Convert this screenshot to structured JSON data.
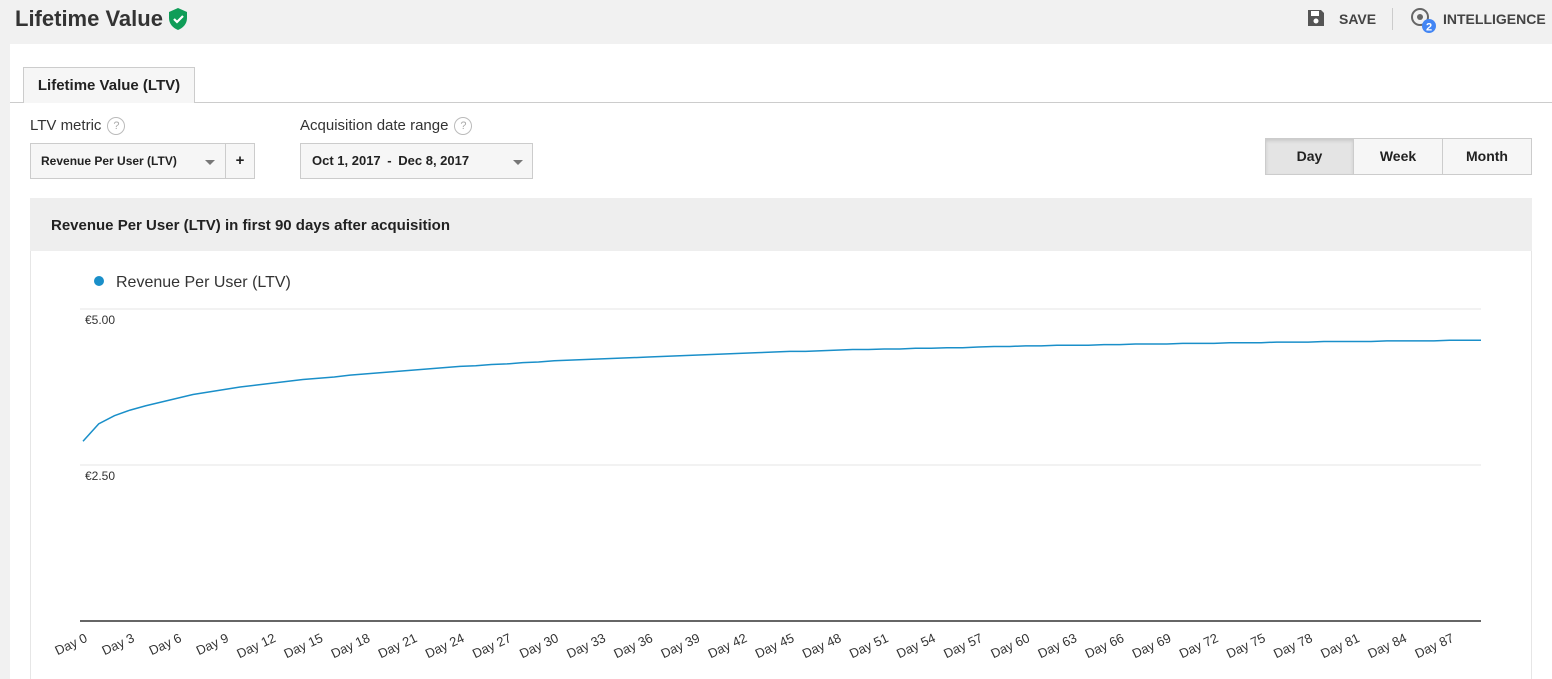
{
  "header": {
    "title": "Lifetime Value",
    "actions": [
      "SAVE",
      "INTELLIGENCE"
    ],
    "badge": "2"
  },
  "tab": "Lifetime Value (LTV)",
  "controls": {
    "metric_label": "LTV metric",
    "help": "?",
    "metric": "Revenue Per User (LTV)",
    "add": "+",
    "range_label": "Acquisition date range",
    "range_start": "Oct 1, 2017",
    "range_sep": "-",
    "range_end": "Dec 8, 2017",
    "granularity": [
      "Day",
      "Week",
      "Month"
    ]
  },
  "chart_data": {
    "type": "line",
    "title": "Revenue Per User (LTV) in first 90 days after acquisition",
    "categories": [
      "Day 0",
      null,
      null,
      "Day 3",
      null,
      null,
      "Day 6",
      null,
      null,
      "Day 9",
      null,
      null,
      "Day 12",
      null,
      null,
      "Day 15",
      null,
      null,
      "Day 18",
      null,
      null,
      "Day 21",
      null,
      null,
      "Day 24",
      null,
      null,
      "Day 27",
      null,
      null,
      "Day 30",
      null,
      null,
      "Day 33",
      null,
      null,
      "Day 36",
      null,
      null,
      "Day 39",
      null,
      null,
      "Day 42",
      null,
      null,
      "Day 45",
      null,
      null,
      "Day 48",
      null,
      null,
      "Day 51",
      null,
      null,
      "Day 54",
      null,
      null,
      "Day 57",
      null,
      null,
      "Day 60",
      null,
      null,
      "Day 63",
      null,
      null,
      "Day 66",
      null,
      null,
      "Day 69",
      null,
      null,
      "Day 72",
      null,
      null,
      "Day 75",
      null,
      null,
      "Day 78",
      null,
      null,
      "Day 81",
      null,
      null,
      "Day 84",
      null,
      null,
      "Day 87",
      null,
      null
    ],
    "series": [
      {
        "name": "Revenue Per User (LTV)",
        "color": "#1a8fc9",
        "values": [
          2.88,
          3.16,
          3.29,
          3.38,
          3.45,
          3.51,
          3.57,
          3.63,
          3.67,
          3.71,
          3.75,
          3.78,
          3.81,
          3.84,
          3.87,
          3.89,
          3.91,
          3.94,
          3.96,
          3.98,
          4.0,
          4.02,
          4.04,
          4.06,
          4.08,
          4.09,
          4.11,
          4.12,
          4.14,
          4.15,
          4.17,
          4.18,
          4.19,
          4.2,
          4.21,
          4.22,
          4.23,
          4.24,
          4.25,
          4.26,
          4.27,
          4.28,
          4.29,
          4.3,
          4.31,
          4.32,
          4.32,
          4.33,
          4.34,
          4.35,
          4.35,
          4.36,
          4.36,
          4.37,
          4.37,
          4.38,
          4.38,
          4.39,
          4.4,
          4.4,
          4.41,
          4.41,
          4.42,
          4.42,
          4.42,
          4.43,
          4.43,
          4.44,
          4.44,
          4.44,
          4.45,
          4.45,
          4.45,
          4.46,
          4.46,
          4.46,
          4.47,
          4.47,
          4.47,
          4.48,
          4.48,
          4.48,
          4.48,
          4.49,
          4.49,
          4.49,
          4.49,
          4.5,
          4.5,
          4.5
        ]
      }
    ],
    "ylim": [
      0,
      5
    ],
    "yticks": [
      {
        "value": 2.5,
        "label": "€2.50"
      },
      {
        "value": 5,
        "label": "€5.00"
      }
    ],
    "grid": true,
    "legend": "top-left"
  }
}
